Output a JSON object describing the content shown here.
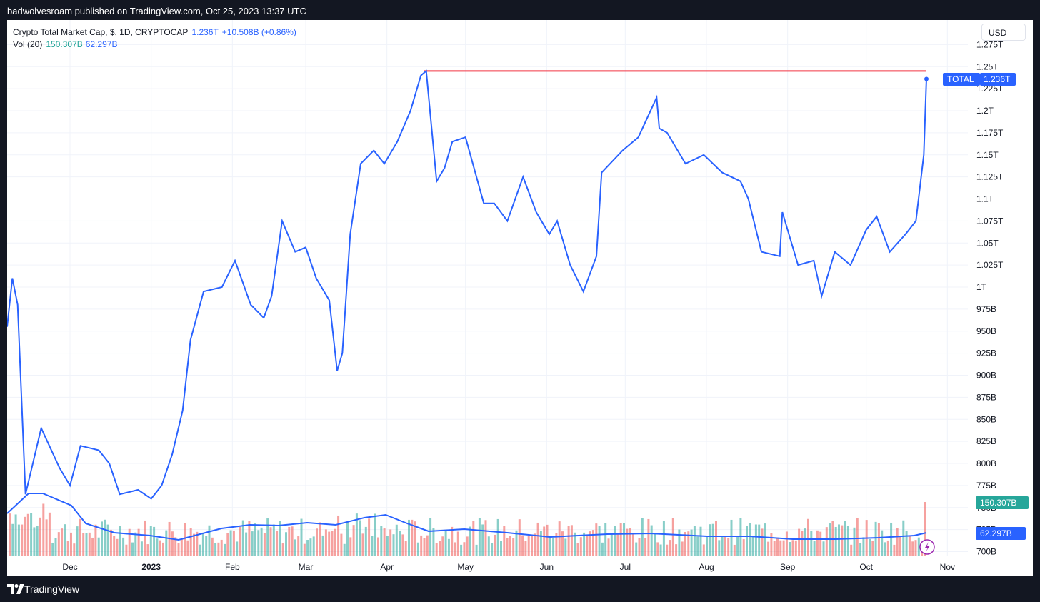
{
  "header": {
    "published": "badwolvesroam published on TradingView.com, Oct 25, 2023 13:37 UTC"
  },
  "legend": {
    "symbol": "Crypto Total Market Cap, $, 1D, CRYPTOCAP",
    "price": "1.236T",
    "change": "+10.508B (+0.86%)",
    "vol_label": "Vol (20)",
    "vol_value": "150.307B",
    "vol_ma": "62.297B"
  },
  "currency": "USD",
  "price_tags": {
    "total_name": "TOTAL",
    "total_value": "1.236T",
    "vol_value": "150.307B",
    "vol_ma": "62.297B"
  },
  "footer": {
    "brand": "TradingView"
  },
  "colors": {
    "line": "#2962ff",
    "resistance": "#f23645",
    "vol_up": "#26a69a",
    "vol_down": "#ef5350"
  },
  "chart_data": {
    "type": "line",
    "series_name": "TOTAL",
    "y_unit": "USD",
    "y_ticks": [
      "1.275T",
      "1.25T",
      "1.225T",
      "1.2T",
      "1.175T",
      "1.15T",
      "1.125T",
      "1.1T",
      "1.075T",
      "1.05T",
      "1.025T",
      "1T",
      "975B",
      "950B",
      "925B",
      "900B",
      "875B",
      "850B",
      "825B",
      "800B",
      "775B",
      "750B",
      "725B",
      "700B"
    ],
    "x_ticks": [
      "Dec",
      "2023",
      "Feb",
      "Mar",
      "Apr",
      "May",
      "Jun",
      "Jul",
      "Aug",
      "Sep",
      "Oct",
      "Nov"
    ],
    "resistance_level": 1.245,
    "last_value": 1.236,
    "x": [
      "2022-11-07",
      "2022-11-09",
      "2022-11-11",
      "2022-11-14",
      "2022-11-20",
      "2022-11-27",
      "2022-12-01",
      "2022-12-05",
      "2022-12-12",
      "2022-12-16",
      "2022-12-20",
      "2022-12-27",
      "2023-01-01",
      "2023-01-05",
      "2023-01-09",
      "2023-01-13",
      "2023-01-16",
      "2023-01-21",
      "2023-01-28",
      "2023-02-02",
      "2023-02-08",
      "2023-02-13",
      "2023-02-16",
      "2023-02-20",
      "2023-02-25",
      "2023-03-01",
      "2023-03-05",
      "2023-03-10",
      "2023-03-13",
      "2023-03-15",
      "2023-03-18",
      "2023-03-22",
      "2023-03-27",
      "2023-03-31",
      "2023-04-05",
      "2023-04-10",
      "2023-04-14",
      "2023-04-16",
      "2023-04-20",
      "2023-04-23",
      "2023-04-26",
      "2023-05-01",
      "2023-05-08",
      "2023-05-12",
      "2023-05-17",
      "2023-05-23",
      "2023-05-28",
      "2023-06-02",
      "2023-06-05",
      "2023-06-10",
      "2023-06-15",
      "2023-06-20",
      "2023-06-22",
      "2023-06-30",
      "2023-07-06",
      "2023-07-13",
      "2023-07-14",
      "2023-07-17",
      "2023-07-24",
      "2023-07-31",
      "2023-08-07",
      "2023-08-14",
      "2023-08-17",
      "2023-08-22",
      "2023-08-29",
      "2023-08-30",
      "2023-09-05",
      "2023-09-11",
      "2023-09-14",
      "2023-09-19",
      "2023-09-25",
      "2023-10-01",
      "2023-10-05",
      "2023-10-10",
      "2023-10-16",
      "2023-10-20",
      "2023-10-23",
      "2023-10-24"
    ],
    "y": [
      0.955,
      1.01,
      0.98,
      0.765,
      0.84,
      0.795,
      0.775,
      0.82,
      0.815,
      0.8,
      0.765,
      0.77,
      0.76,
      0.775,
      0.81,
      0.86,
      0.94,
      0.995,
      1.0,
      1.03,
      0.98,
      0.965,
      0.99,
      1.075,
      1.04,
      1.045,
      1.01,
      0.985,
      0.905,
      0.925,
      1.06,
      1.14,
      1.155,
      1.14,
      1.165,
      1.2,
      1.24,
      1.245,
      1.12,
      1.135,
      1.165,
      1.17,
      1.095,
      1.095,
      1.075,
      1.125,
      1.085,
      1.06,
      1.075,
      1.025,
      0.995,
      1.035,
      1.13,
      1.155,
      1.17,
      1.215,
      1.18,
      1.175,
      1.14,
      1.15,
      1.13,
      1.12,
      1.1,
      1.04,
      1.035,
      1.085,
      1.025,
      1.03,
      0.99,
      1.04,
      1.025,
      1.065,
      1.08,
      1.04,
      1.06,
      1.075,
      1.15,
      1.236
    ]
  }
}
